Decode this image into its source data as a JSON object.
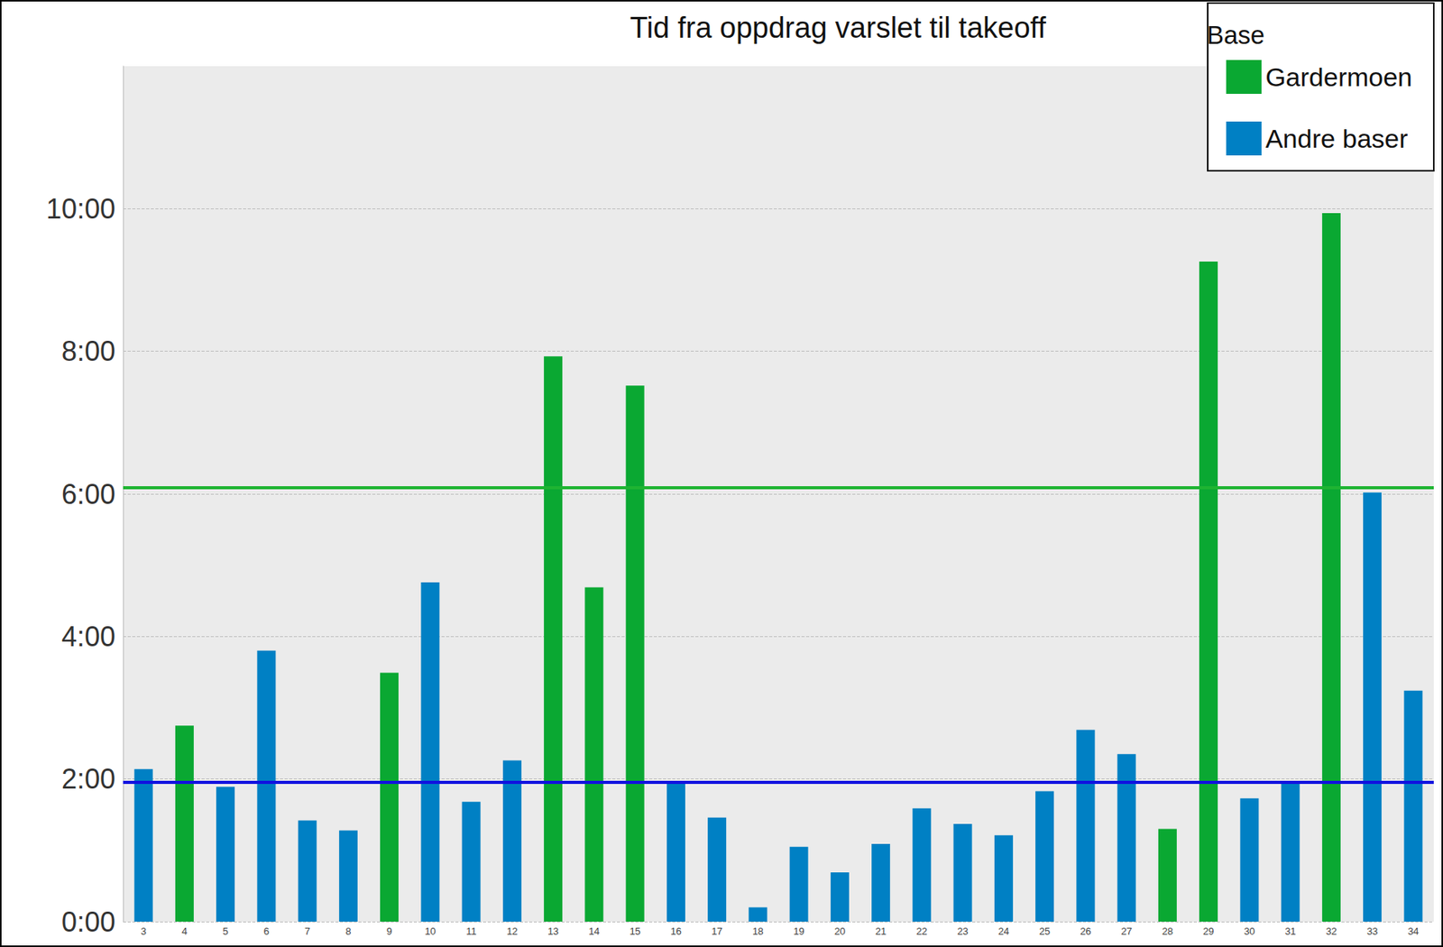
{
  "chart_data": {
    "type": "bar",
    "title": "Tid fra oppdrag varslet til takeoff",
    "categories": [
      "3",
      "4",
      "5",
      "6",
      "7",
      "8",
      "9",
      "10",
      "11",
      "12",
      "13",
      "14",
      "15",
      "16",
      "17",
      "18",
      "19",
      "20",
      "21",
      "22",
      "23",
      "24",
      "25",
      "26",
      "27",
      "28",
      "29",
      "30",
      "31",
      "32",
      "33",
      "34"
    ],
    "series": [
      {
        "name": "Gardermoen",
        "color": "#0aa832",
        "values": [
          null,
          2.75,
          null,
          null,
          null,
          null,
          3.49,
          null,
          null,
          null,
          7.93,
          4.69,
          7.52,
          null,
          null,
          null,
          null,
          null,
          null,
          null,
          null,
          null,
          null,
          null,
          null,
          1.3,
          9.26,
          null,
          null,
          9.94,
          null,
          null
        ]
      },
      {
        "name": "Andre baser",
        "color": "#0080c4",
        "values": [
          2.14,
          null,
          1.89,
          3.8,
          1.42,
          1.28,
          null,
          4.76,
          1.68,
          2.26,
          null,
          null,
          null,
          1.97,
          1.46,
          0.2,
          1.05,
          0.69,
          1.09,
          1.59,
          1.37,
          1.21,
          1.83,
          2.69,
          2.35,
          null,
          null,
          1.73,
          1.97,
          null,
          6.02,
          3.24
        ]
      }
    ],
    "reference_lines": [
      {
        "value": 6.09,
        "color": "#1eb432"
      },
      {
        "value": 1.96,
        "color": "#1010e0"
      }
    ],
    "ylim": [
      0,
      12
    ],
    "yticks": [
      {
        "value": 0,
        "label": "0:00"
      },
      {
        "value": 2,
        "label": "2:00"
      },
      {
        "value": 4,
        "label": "4:00"
      },
      {
        "value": 6,
        "label": "6:00"
      },
      {
        "value": 8,
        "label": "8:00"
      },
      {
        "value": 10,
        "label": "10:00"
      }
    ],
    "grid": true,
    "legend": "top-right",
    "legend_title": "Base"
  }
}
